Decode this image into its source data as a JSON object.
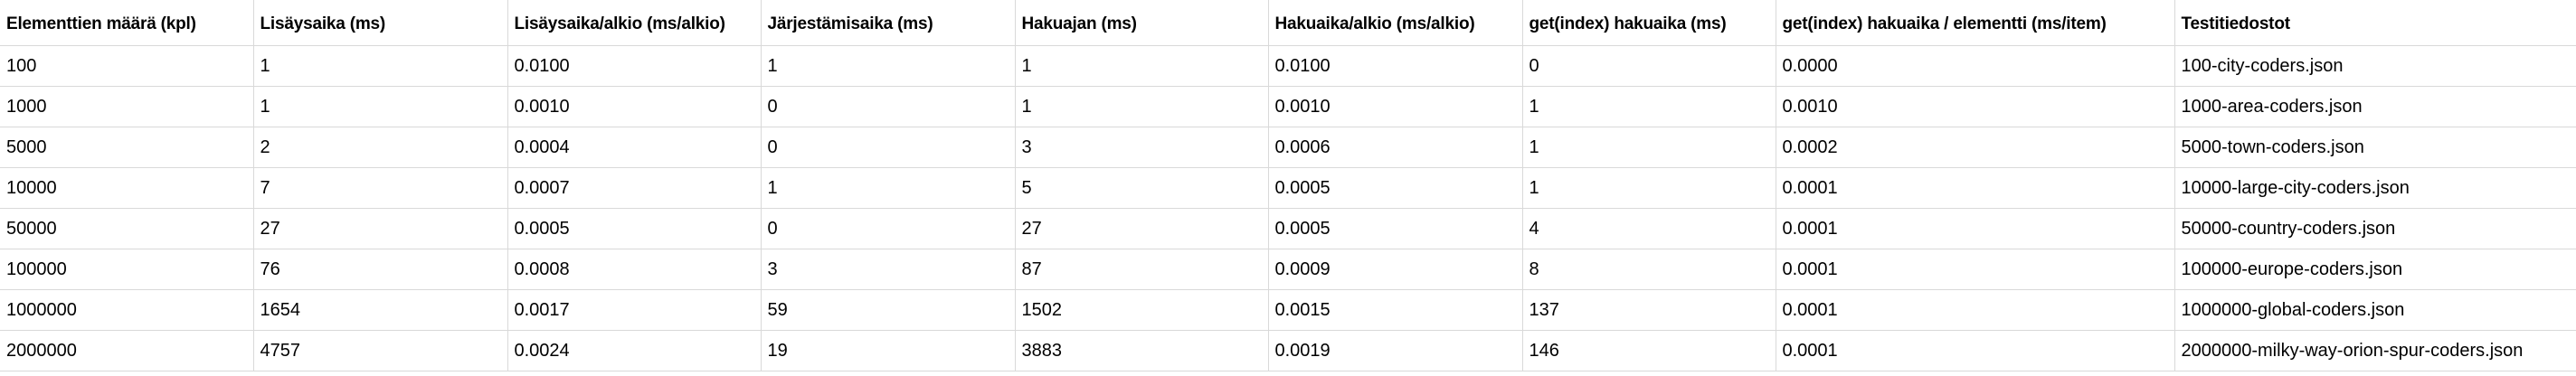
{
  "table": {
    "headers": [
      "Elementtien määrä (kpl)",
      "Lisäysaika (ms)",
      "Lisäysaika/alkio (ms/alkio)",
      "Järjestämisaika (ms)",
      "Hakuajan (ms)",
      "Hakuaika/alkio (ms/alkio)",
      "get(index) hakuaika (ms)",
      "get(index) hakuaika / elementti (ms/item)",
      "Testitiedostot"
    ],
    "rows": [
      [
        "100",
        "1",
        "0.0100",
        "1",
        "1",
        "0.0100",
        "0",
        "0.0000",
        "100-city-coders.json"
      ],
      [
        "1000",
        "1",
        "0.0010",
        "0",
        "1",
        "0.0010",
        "1",
        "0.0010",
        "1000-area-coders.json"
      ],
      [
        "5000",
        "2",
        "0.0004",
        "0",
        "3",
        "0.0006",
        "1",
        "0.0002",
        "5000-town-coders.json"
      ],
      [
        "10000",
        "7",
        "0.0007",
        "1",
        "5",
        "0.0005",
        "1",
        "0.0001",
        "10000-large-city-coders.json"
      ],
      [
        "50000",
        "27",
        "0.0005",
        "0",
        "27",
        "0.0005",
        "4",
        "0.0001",
        "50000-country-coders.json"
      ],
      [
        "100000",
        "76",
        "0.0008",
        "3",
        "87",
        "0.0009",
        "8",
        "0.0001",
        "100000-europe-coders.json"
      ],
      [
        "1000000",
        "1654",
        "0.0017",
        "59",
        "1502",
        "0.0015",
        "137",
        "0.0001",
        "1000000-global-coders.json"
      ],
      [
        "2000000",
        "4757",
        "0.0024",
        "19",
        "3883",
        "0.0019",
        "146",
        "0.0001",
        "2000000-milky-way-orion-spur-coders.json"
      ]
    ]
  }
}
